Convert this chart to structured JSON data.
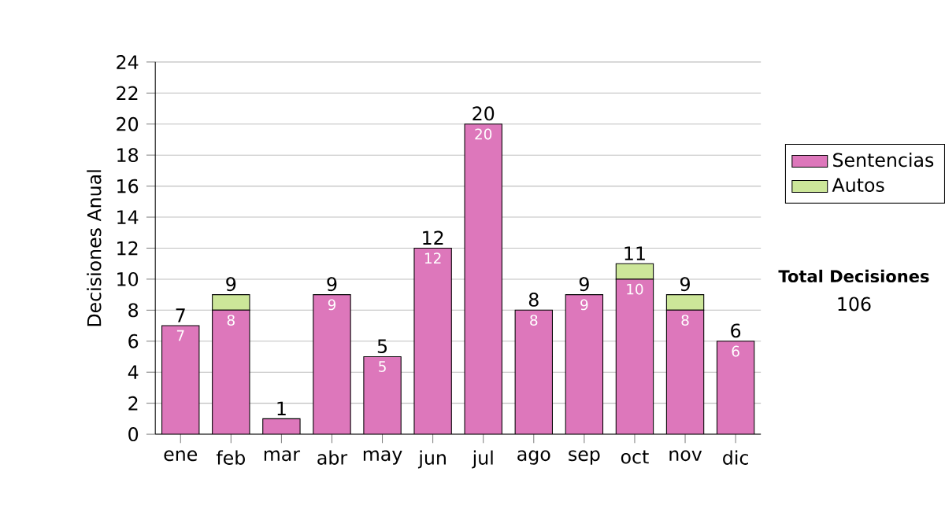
{
  "chart_data": {
    "type": "bar",
    "stacked": true,
    "ylabel": "Decisiones Anual",
    "categories": [
      "ene",
      "feb",
      "mar",
      "abr",
      "may",
      "jun",
      "jul",
      "ago",
      "sep",
      "oct",
      "nov",
      "dic"
    ],
    "series": [
      {
        "name": "Sentencias",
        "color": "#dd77bb",
        "values": [
          7,
          8,
          1,
          9,
          5,
          12,
          20,
          8,
          9,
          10,
          8,
          6
        ],
        "value_labels": [
          "7",
          "8",
          null,
          "9",
          "5",
          "12",
          "20",
          "8",
          "9",
          "10",
          "8",
          "6"
        ]
      },
      {
        "name": "Autos",
        "color": "#cce699",
        "values": [
          0,
          1,
          0,
          0,
          0,
          0,
          0,
          0,
          0,
          1,
          1,
          0
        ]
      }
    ],
    "totals": [
      "7",
      "9",
      "1",
      "9",
      "5",
      "12",
      "20",
      "8",
      "9",
      "11",
      "9",
      "6"
    ],
    "ylim": [
      0,
      24
    ],
    "yticks": [
      0,
      2,
      4,
      6,
      8,
      10,
      12,
      14,
      16,
      18,
      20,
      22,
      24
    ],
    "grid": "y",
    "legend": "right",
    "annotations": [
      "Total Decisiones",
      "106"
    ]
  }
}
